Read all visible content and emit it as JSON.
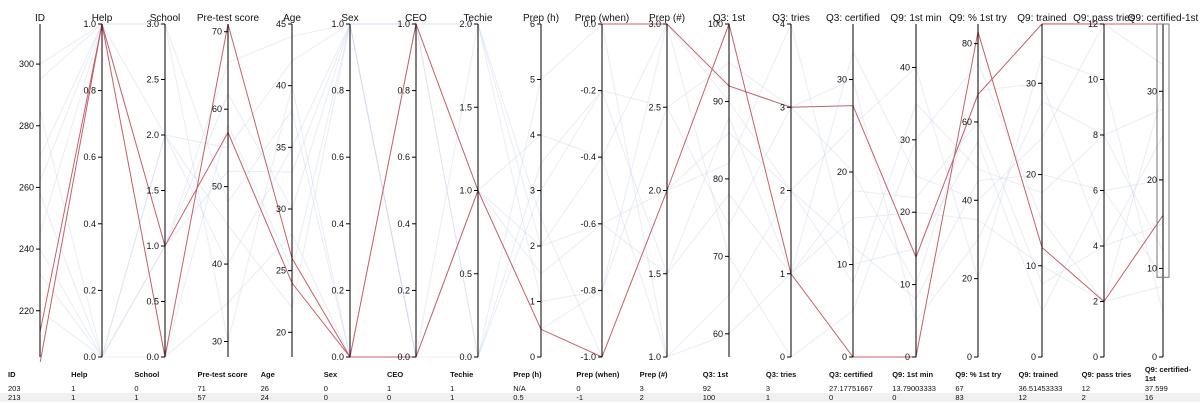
{
  "chart_data": {
    "type": "parallel-coordinates",
    "axes": [
      {
        "name": "ID",
        "ticks": [
          "300",
          "280",
          "260",
          "240",
          "220"
        ],
        "range": [
          205,
          313
        ]
      },
      {
        "name": "Help",
        "ticks": [
          "0.0",
          "0.2",
          "0.4",
          "0.6",
          "0.8",
          "1.0"
        ],
        "range": [
          0,
          1
        ]
      },
      {
        "name": "School",
        "ticks": [
          "0.0",
          "0.5",
          "1.0",
          "1.5",
          "2.0",
          "2.5",
          "3.0"
        ],
        "range": [
          0,
          3
        ]
      },
      {
        "name": "Pre-test score",
        "ticks": [
          "30",
          "40",
          "50",
          "60",
          "70"
        ],
        "range": [
          28,
          71
        ]
      },
      {
        "name": "Age",
        "ticks": [
          "20",
          "25",
          "30",
          "35",
          "40",
          "45"
        ],
        "range": [
          18,
          45
        ]
      },
      {
        "name": "Sex",
        "ticks": [
          "0.0",
          "0.2",
          "0.4",
          "0.6",
          "0.8",
          "1.0"
        ],
        "range": [
          0,
          1
        ]
      },
      {
        "name": "CEO",
        "ticks": [
          "0.0",
          "0.2",
          "0.4",
          "0.6",
          "0.8",
          "1.0"
        ],
        "range": [
          0,
          1
        ]
      },
      {
        "name": "Techie",
        "ticks": [
          "0.0",
          "0.5",
          "1.0",
          "1.5",
          "2.0"
        ],
        "range": [
          0,
          2
        ]
      },
      {
        "name": "Prep (h)",
        "ticks": [
          "0",
          "1",
          "2",
          "3",
          "4",
          "5",
          "6"
        ],
        "range": [
          0,
          6
        ]
      },
      {
        "name": "Prep (when)",
        "ticks": [
          "-1.0",
          "-0.8",
          "-0.6",
          "-0.4",
          "-0.2",
          "0.0"
        ],
        "range": [
          -1,
          0
        ]
      },
      {
        "name": "Prep (#)",
        "ticks": [
          "1.0",
          "1.5",
          "2.0",
          "2.5",
          "3.0"
        ],
        "range": [
          1,
          3
        ]
      },
      {
        "name": "Q3: 1st",
        "ticks": [
          "60",
          "70",
          "80",
          "90",
          "100"
        ],
        "range": [
          57,
          100
        ]
      },
      {
        "name": "Q3: tries",
        "ticks": [
          "0",
          "1",
          "2",
          "3",
          "4"
        ],
        "range": [
          0,
          4
        ]
      },
      {
        "name": "Q3: certified",
        "ticks": [
          "0",
          "10",
          "20",
          "30"
        ],
        "range": [
          0,
          36
        ]
      },
      {
        "name": "Q9: 1st min",
        "ticks": [
          "0",
          "10",
          "20",
          "30",
          "40"
        ],
        "range": [
          0,
          46
        ]
      },
      {
        "name": "Q9: % 1st try",
        "ticks": [
          "0",
          "20",
          "40",
          "60",
          "80"
        ],
        "range": [
          0,
          85
        ]
      },
      {
        "name": "Q9: trained",
        "ticks": [
          "0",
          "10",
          "20",
          "30"
        ],
        "range": [
          0,
          36.5
        ]
      },
      {
        "name": "Q9: pass tries",
        "ticks": [
          "0",
          "2",
          "4",
          "6",
          "8",
          "10",
          "12"
        ],
        "range": [
          0,
          12
        ]
      },
      {
        "name": "Q9: certified-1st",
        "ticks": [
          "0",
          "10",
          "20",
          "30"
        ],
        "range": [
          0,
          37.6
        ]
      }
    ],
    "highlighted_rows": [
      [
        203,
        1,
        0,
        71,
        26,
        0,
        1,
        1,
        null,
        0,
        3,
        92,
        3,
        27.17751667,
        13.79003333,
        67,
        36.51453333,
        12,
        37.599
      ],
      [
        213,
        1,
        1,
        57,
        24,
        0,
        0,
        1,
        0.5,
        -1,
        2,
        100,
        1,
        0,
        0,
        83,
        12,
        2,
        16
      ]
    ],
    "background_rows": [
      [
        232,
        0,
        2,
        55,
        42,
        1,
        0,
        1,
        2,
        -0.6,
        2,
        86,
        2,
        12,
        8,
        45,
        20,
        6,
        9
      ],
      [
        245,
        1,
        3,
        48,
        38,
        0,
        1,
        0,
        3,
        -0.2,
        1.5,
        78,
        1,
        18,
        22,
        60,
        8,
        4,
        25
      ],
      [
        258,
        0,
        1,
        62,
        30,
        1,
        0,
        2,
        1,
        -0.8,
        2.5,
        95,
        3,
        30,
        5,
        30,
        28,
        8,
        12
      ],
      [
        270,
        1,
        2,
        40,
        35,
        1,
        1,
        1,
        4,
        -0.4,
        3,
        70,
        0,
        5,
        30,
        75,
        15,
        2,
        30
      ],
      [
        285,
        0,
        0,
        35,
        28,
        0,
        0,
        0,
        5,
        0,
        1,
        65,
        2,
        25,
        40,
        20,
        33,
        10,
        5
      ],
      [
        295,
        1,
        1,
        66,
        44,
        1,
        1,
        2,
        2.5,
        -1,
        2,
        82,
        4,
        10,
        15,
        55,
        5,
        6,
        20
      ],
      [
        220,
        0,
        2,
        45,
        22,
        1,
        0,
        1,
        1.5,
        -0.6,
        1.5,
        88,
        1,
        33,
        25,
        40,
        24,
        12,
        33
      ],
      [
        300,
        1,
        3,
        30,
        40,
        0,
        1,
        0,
        3.5,
        -0.2,
        2.5,
        74,
        3,
        20,
        10,
        68,
        30,
        4,
        15
      ],
      [
        240,
        0,
        1,
        52,
        33,
        1,
        0,
        1,
        0.5,
        -0.8,
        3,
        90,
        2,
        8,
        35,
        48,
        18,
        8,
        28
      ],
      [
        262,
        1,
        0,
        58,
        25,
        1,
        1,
        2,
        2,
        -0.4,
        1,
        60,
        1,
        15,
        20,
        35,
        10,
        2,
        8
      ]
    ],
    "brush": {
      "axis": "Q9: certified-1st",
      "extent": [
        9,
        37.599
      ]
    }
  },
  "table": {
    "columns": [
      "ID",
      "Help",
      "School",
      "Pre-test score",
      "Age",
      "Sex",
      "CEO",
      "Techie",
      "Prep (h)",
      "Prep (when)",
      "Prep (#)",
      "Q3: 1st",
      "Q3: tries",
      "Q3: certified",
      "Q9: 1st min",
      "Q9: % 1st try",
      "Q9: trained",
      "Q9: pass tries",
      "Q9: certified-1st"
    ],
    "rows": [
      [
        "203",
        "1",
        "0",
        "71",
        "26",
        "0",
        "1",
        "1",
        "N/A",
        "0",
        "3",
        "92",
        "3",
        "27.17751667",
        "13.79003333",
        "67",
        "36.51453333",
        "12",
        "37.599"
      ],
      [
        "213",
        "1",
        "1",
        "57",
        "24",
        "0",
        "0",
        "1",
        "0.5",
        "-1",
        "2",
        "100",
        "1",
        "0",
        "0",
        "83",
        "12",
        "2",
        "16"
      ]
    ]
  },
  "colors": {
    "highlight": "#c4606b",
    "background": "#cfd8ea",
    "axis": "#000000"
  }
}
